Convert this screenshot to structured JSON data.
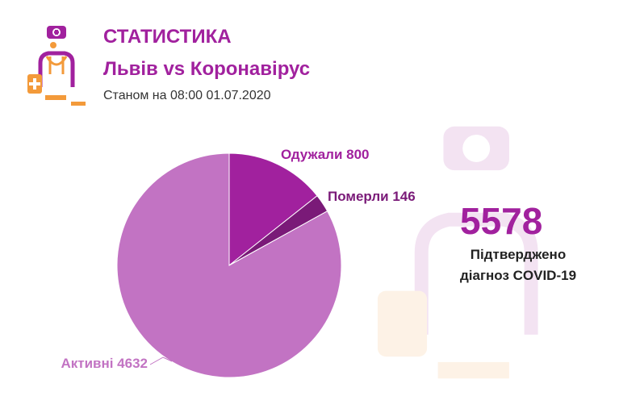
{
  "header": {
    "title": "СТАТИСТИКА",
    "subtitle": "Львів vs Коронавірус",
    "date": "Станом на 08:00 01.07.2020"
  },
  "summary": {
    "total": "5578",
    "caption_line1": "Підтверджено",
    "caption_line2": "діагноз COVID-19"
  },
  "colors": {
    "brand": "#a1219e",
    "recovered": "#a1219e",
    "deaths": "#7a1a78",
    "active": "#c273c3",
    "logo_accent": "#f39a3a"
  },
  "chart_data": {
    "type": "pie",
    "title": "",
    "slices": [
      {
        "label": "Одужали 800",
        "value": 800,
        "color": "#a1219e"
      },
      {
        "label": "Померли 146",
        "value": 146,
        "color": "#7a1a78"
      },
      {
        "label": "Активні 4632",
        "value": 4632,
        "color": "#c273c3"
      }
    ],
    "start_angle": "12 o'clock",
    "direction": "clockwise",
    "legend": "none"
  }
}
